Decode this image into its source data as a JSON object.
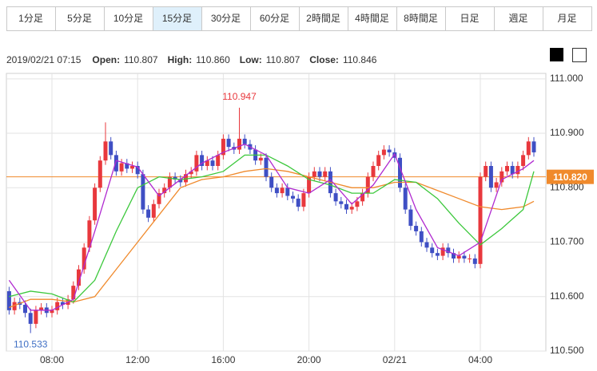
{
  "tabs": [
    {
      "label": "1分足"
    },
    {
      "label": "5分足"
    },
    {
      "label": "10分足"
    },
    {
      "label": "15分足",
      "active": true
    },
    {
      "label": "30分足"
    },
    {
      "label": "60分足"
    },
    {
      "label": "2時間足"
    },
    {
      "label": "4時間足"
    },
    {
      "label": "8時間足"
    },
    {
      "label": "日足"
    },
    {
      "label": "週足"
    },
    {
      "label": "月足"
    }
  ],
  "chart_data": {
    "type": "candlestick",
    "date": "2019/02/21 07:15",
    "info": [
      {
        "label": "Open:",
        "value": "110.807"
      },
      {
        "label": "High:",
        "value": "110.860"
      },
      {
        "label": "Low:",
        "value": "110.807"
      },
      {
        "label": "Close:",
        "value": "110.846"
      }
    ],
    "categories": [
      null,
      null,
      null,
      null,
      null,
      null,
      null,
      null,
      "08:00",
      null,
      null,
      null,
      null,
      null,
      null,
      null,
      null,
      null,
      null,
      null,
      null,
      null,
      null,
      null,
      "12:00",
      null,
      null,
      null,
      null,
      null,
      null,
      null,
      null,
      null,
      null,
      null,
      null,
      null,
      null,
      null,
      "16:00",
      null,
      null,
      null,
      null,
      null,
      null,
      null,
      null,
      null,
      null,
      null,
      null,
      null,
      null,
      null,
      "20:00",
      null,
      null,
      null,
      null,
      null,
      null,
      null,
      null,
      null,
      null,
      null,
      null,
      null,
      null,
      null,
      "02/21",
      null,
      null,
      null,
      null,
      null,
      null,
      null,
      null,
      null,
      null,
      null,
      null,
      null,
      null,
      null,
      "04:00",
      null,
      null,
      null,
      null,
      null,
      null,
      null,
      null,
      null,
      null
    ],
    "open": [
      110.61,
      110.575,
      110.59,
      110.585,
      110.57,
      110.55,
      110.575,
      110.58,
      110.57,
      110.575,
      110.59,
      110.585,
      110.595,
      110.62,
      110.65,
      110.69,
      110.74,
      110.8,
      110.85,
      110.885,
      110.86,
      110.83,
      110.845,
      110.835,
      110.84,
      110.825,
      110.76,
      110.745,
      110.77,
      110.79,
      110.8,
      110.82,
      110.815,
      110.81,
      110.825,
      110.83,
      110.86,
      110.84,
      110.85,
      110.84,
      110.86,
      110.89,
      110.875,
      110.87,
      110.89,
      110.88,
      110.87,
      110.85,
      110.855,
      110.82,
      110.8,
      110.79,
      110.8,
      110.785,
      110.78,
      110.765,
      110.79,
      110.82,
      110.83,
      110.82,
      110.83,
      110.79,
      110.775,
      110.77,
      110.76,
      110.765,
      110.775,
      110.79,
      110.82,
      110.84,
      110.86,
      110.87,
      110.865,
      110.855,
      110.8,
      110.76,
      110.73,
      110.72,
      110.7,
      110.69,
      110.68,
      110.675,
      110.69,
      110.68,
      110.67,
      110.675,
      110.67,
      110.67,
      110.66,
      110.82,
      110.84,
      110.8,
      110.81,
      110.83,
      110.84,
      110.825,
      110.84,
      110.86,
      110.885
    ],
    "high": [
      110.618,
      110.598,
      110.598,
      110.593,
      110.578,
      110.583,
      110.588,
      110.588,
      110.583,
      110.598,
      110.598,
      110.603,
      110.628,
      110.658,
      110.698,
      110.748,
      110.808,
      110.858,
      110.92,
      110.893,
      110.868,
      110.853,
      110.853,
      110.848,
      110.848,
      110.833,
      110.768,
      110.778,
      110.798,
      110.808,
      110.828,
      110.828,
      110.823,
      110.833,
      110.838,
      110.868,
      110.868,
      110.858,
      110.858,
      110.868,
      110.898,
      110.898,
      110.883,
      110.947,
      110.898,
      110.888,
      110.878,
      110.863,
      110.863,
      110.828,
      110.808,
      110.808,
      110.808,
      110.793,
      110.788,
      110.798,
      110.828,
      110.838,
      110.838,
      110.838,
      110.838,
      110.798,
      110.783,
      110.778,
      110.773,
      110.783,
      110.798,
      110.828,
      110.848,
      110.868,
      110.878,
      110.878,
      110.873,
      110.863,
      110.808,
      110.768,
      110.738,
      110.728,
      110.708,
      110.698,
      110.688,
      110.698,
      110.698,
      110.688,
      110.683,
      110.683,
      110.678,
      110.678,
      110.828,
      110.848,
      110.848,
      110.818,
      110.838,
      110.848,
      110.848,
      110.848,
      110.868,
      110.893,
      110.893
    ],
    "low": [
      110.567,
      110.567,
      110.577,
      110.562,
      110.533,
      110.542,
      110.567,
      110.562,
      110.562,
      110.567,
      110.577,
      110.577,
      110.587,
      110.612,
      110.642,
      110.682,
      110.732,
      110.792,
      110.842,
      110.852,
      110.822,
      110.822,
      110.827,
      110.827,
      110.817,
      110.752,
      110.737,
      110.737,
      110.762,
      110.782,
      110.792,
      110.807,
      110.802,
      110.802,
      110.817,
      110.822,
      110.832,
      110.832,
      110.832,
      110.832,
      110.852,
      110.867,
      110.862,
      110.862,
      110.872,
      110.862,
      110.842,
      110.842,
      110.812,
      110.792,
      110.782,
      110.782,
      110.777,
      110.772,
      110.757,
      110.757,
      110.782,
      110.812,
      110.812,
      110.812,
      110.782,
      110.767,
      110.762,
      110.752,
      110.752,
      110.757,
      110.767,
      110.782,
      110.812,
      110.832,
      110.852,
      110.857,
      110.847,
      110.792,
      110.752,
      110.722,
      110.712,
      110.692,
      110.682,
      110.672,
      110.667,
      110.667,
      110.672,
      110.662,
      110.662,
      110.662,
      110.662,
      110.652,
      110.652,
      110.812,
      110.792,
      110.792,
      110.802,
      110.822,
      110.817,
      110.817,
      110.832,
      110.852,
      110.857
    ],
    "close": [
      110.575,
      110.59,
      110.585,
      110.57,
      110.55,
      110.575,
      110.58,
      110.57,
      110.575,
      110.59,
      110.585,
      110.595,
      110.62,
      110.65,
      110.69,
      110.74,
      110.8,
      110.85,
      110.885,
      110.86,
      110.83,
      110.845,
      110.835,
      110.84,
      110.825,
      110.76,
      110.745,
      110.77,
      110.79,
      110.8,
      110.82,
      110.815,
      110.81,
      110.825,
      110.83,
      110.86,
      110.84,
      110.85,
      110.84,
      110.86,
      110.89,
      110.875,
      110.87,
      110.89,
      110.88,
      110.87,
      110.85,
      110.855,
      110.82,
      110.8,
      110.79,
      110.8,
      110.785,
      110.78,
      110.765,
      110.79,
      110.82,
      110.83,
      110.82,
      110.83,
      110.79,
      110.775,
      110.77,
      110.76,
      110.765,
      110.775,
      110.79,
      110.82,
      110.84,
      110.86,
      110.87,
      110.865,
      110.855,
      110.8,
      110.76,
      110.73,
      110.72,
      110.7,
      110.69,
      110.68,
      110.675,
      110.69,
      110.68,
      110.67,
      110.675,
      110.67,
      110.67,
      110.66,
      110.82,
      110.84,
      110.8,
      110.81,
      110.83,
      110.84,
      110.825,
      110.84,
      110.86,
      110.885,
      110.865
    ],
    "up_color": "#e8383d",
    "down_color": "#3f4fc4",
    "lines": [
      {
        "color": "#f08a2c",
        "x": [
          0,
          4,
          8,
          12,
          16,
          20,
          24,
          28,
          32,
          36,
          40,
          44,
          48,
          52,
          56,
          60,
          64,
          68,
          72,
          76,
          80,
          84,
          88,
          92,
          96,
          98
        ],
        "values": [
          110.58,
          110.595,
          110.595,
          110.59,
          110.6,
          110.65,
          110.7,
          110.75,
          110.8,
          110.815,
          110.82,
          110.83,
          110.835,
          110.83,
          110.82,
          110.81,
          110.8,
          110.8,
          110.81,
          110.81,
          110.795,
          110.78,
          110.765,
          110.76,
          110.765,
          110.775
        ]
      },
      {
        "color": "#3cc83c",
        "x": [
          0,
          4,
          8,
          12,
          16,
          20,
          24,
          28,
          32,
          36,
          40,
          44,
          48,
          52,
          56,
          60,
          64,
          68,
          72,
          76,
          80,
          84,
          88,
          92,
          96,
          98
        ],
        "values": [
          110.6,
          110.61,
          110.605,
          110.59,
          110.63,
          110.72,
          110.8,
          110.82,
          110.815,
          110.82,
          110.83,
          110.86,
          110.86,
          110.84,
          110.815,
          110.805,
          110.79,
          110.79,
          110.815,
          110.81,
          110.78,
          110.735,
          110.695,
          110.725,
          110.76,
          110.83
        ]
      },
      {
        "color": "#b02ad0",
        "x": [
          0,
          4,
          8,
          12,
          16,
          20,
          24,
          28,
          32,
          36,
          40,
          44,
          48,
          52,
          56,
          60,
          64,
          68,
          72,
          76,
          80,
          84,
          88,
          92,
          96,
          98
        ],
        "values": [
          110.63,
          110.575,
          110.575,
          110.595,
          110.72,
          110.85,
          110.838,
          110.785,
          110.815,
          110.845,
          110.865,
          110.88,
          110.86,
          110.8,
          110.79,
          110.815,
          110.77,
          110.805,
          110.862,
          110.76,
          110.69,
          110.675,
          110.7,
          110.815,
          110.835,
          110.85
        ]
      }
    ],
    "price_line": {
      "value": 110.82,
      "label": "110.820",
      "color": "#f08a2c"
    },
    "annotations": [
      {
        "value": 110.947,
        "label": "110.947",
        "color": "#e8383d"
      },
      {
        "value": 110.533,
        "label": "110.533",
        "color": "#3f6fc4"
      }
    ],
    "ylim": [
      110.5,
      111.01
    ],
    "yticks": [
      {
        "value": 110.5,
        "label": "110.500"
      },
      {
        "value": 110.6,
        "label": "110.600"
      },
      {
        "value": 110.7,
        "label": "110.700"
      },
      {
        "value": 110.8,
        "label": "110.800"
      },
      {
        "value": 110.9,
        "label": "110.900"
      },
      {
        "value": 111.0,
        "label": "111.000"
      }
    ],
    "grid": true
  }
}
